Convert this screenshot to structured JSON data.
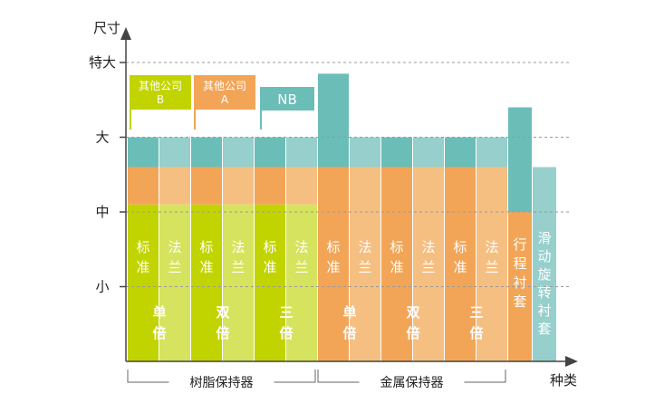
{
  "chart_data": {
    "type": "bar",
    "title": "",
    "ylabel": "尺寸",
    "xlabel": "种类",
    "y_levels": [
      "小",
      "中",
      "大",
      "特大"
    ],
    "groups": [
      {
        "label": "树脂保持器"
      },
      {
        "label": "金属保持器"
      }
    ],
    "sub_groups": [
      {
        "label": "单倍",
        "label_chars": [
          "单",
          "倍"
        ],
        "family": "resin"
      },
      {
        "label": "双倍",
        "label_chars": [
          "双",
          "倍"
        ],
        "family": "resin"
      },
      {
        "label": "三倍",
        "label_chars": [
          "三",
          "倍"
        ],
        "family": "resin"
      },
      {
        "label": "单倍",
        "label_chars": [
          "单",
          "倍"
        ],
        "family": "metal"
      },
      {
        "label": "双倍",
        "label_chars": [
          "双",
          "倍"
        ],
        "family": "metal"
      },
      {
        "label": "三倍",
        "label_chars": [
          "三",
          "倍"
        ],
        "family": "metal"
      }
    ],
    "variants": [
      {
        "label": "标准",
        "chars": [
          "标",
          "准"
        ]
      },
      {
        "label": "法兰",
        "chars": [
          "法",
          "兰"
        ]
      }
    ],
    "sleeves": [
      {
        "label": "行程衬套",
        "chars": [
          "行",
          "程",
          "衬",
          "套"
        ],
        "max_size": 3.4
      },
      {
        "label": "滑动旋转衬套",
        "chars": [
          "滑",
          "动",
          "旋",
          "转",
          "衬",
          "套"
        ],
        "max_size": 2.6
      }
    ],
    "size_ranges": [
      {
        "name": "其他公司B",
        "label_lines": [
          "其他公司",
          "B"
        ],
        "max_size": 2.1,
        "color": "#c2d400"
      },
      {
        "name": "其他公司A",
        "label_lines": [
          "其他公司",
          "A"
        ],
        "max_size": 2.6,
        "color": "#f2a557"
      },
      {
        "name": "NB",
        "label_lines": [
          "NB"
        ],
        "max_size": 3.0,
        "color": "#6bbdb8"
      }
    ],
    "single_metal_max_size": 3.85,
    "colors": {
      "lime": "#c2d400",
      "lime_light": "#d6e35e",
      "orange": "#f2a557",
      "orange_light": "#f6bf82",
      "teal": "#6bbdb8",
      "teal_light": "#96cfcb"
    }
  }
}
